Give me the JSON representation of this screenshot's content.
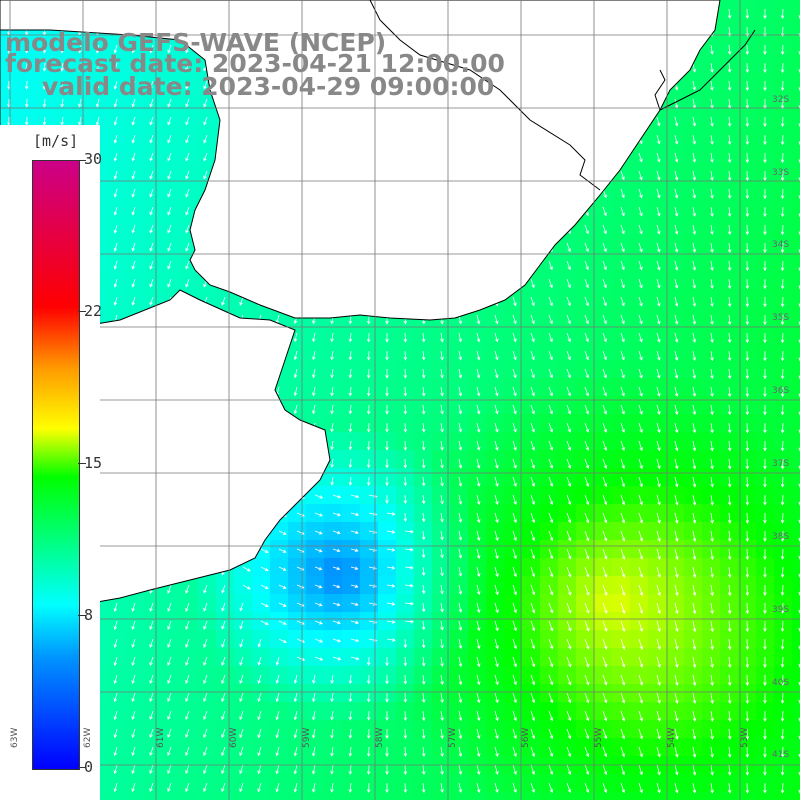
{
  "map": {
    "title_line1": "modelo GEFS-WAVE (NCEP)",
    "title_line2": "forecast date: 2023-04-21 12:00:00",
    "title_line3": "valid date: 2023-04-29 09:00:00",
    "colorbar": {
      "unit": "[m/s]",
      "ticks": [
        "30",
        "22",
        "15",
        "8",
        "0"
      ],
      "range": [
        0,
        30
      ],
      "colors": [
        "#0000ff",
        "#0090ff",
        "#00ffff",
        "#00ff00",
        "#ffff00",
        "#ff9900",
        "#ff0000",
        "#cc0088"
      ]
    },
    "lat_labels": [
      "32S",
      "33S",
      "34S",
      "35S",
      "36S",
      "37S",
      "38S",
      "39S",
      "40S",
      "41S"
    ],
    "lon_labels": [
      "63W",
      "62W",
      "61W",
      "60W",
      "59W",
      "58W",
      "57W",
      "56W",
      "55W",
      "54W",
      "53W"
    ],
    "land_color": "#ffffff",
    "arrow_color": "#ffffff",
    "grid_color": "#777777"
  }
}
